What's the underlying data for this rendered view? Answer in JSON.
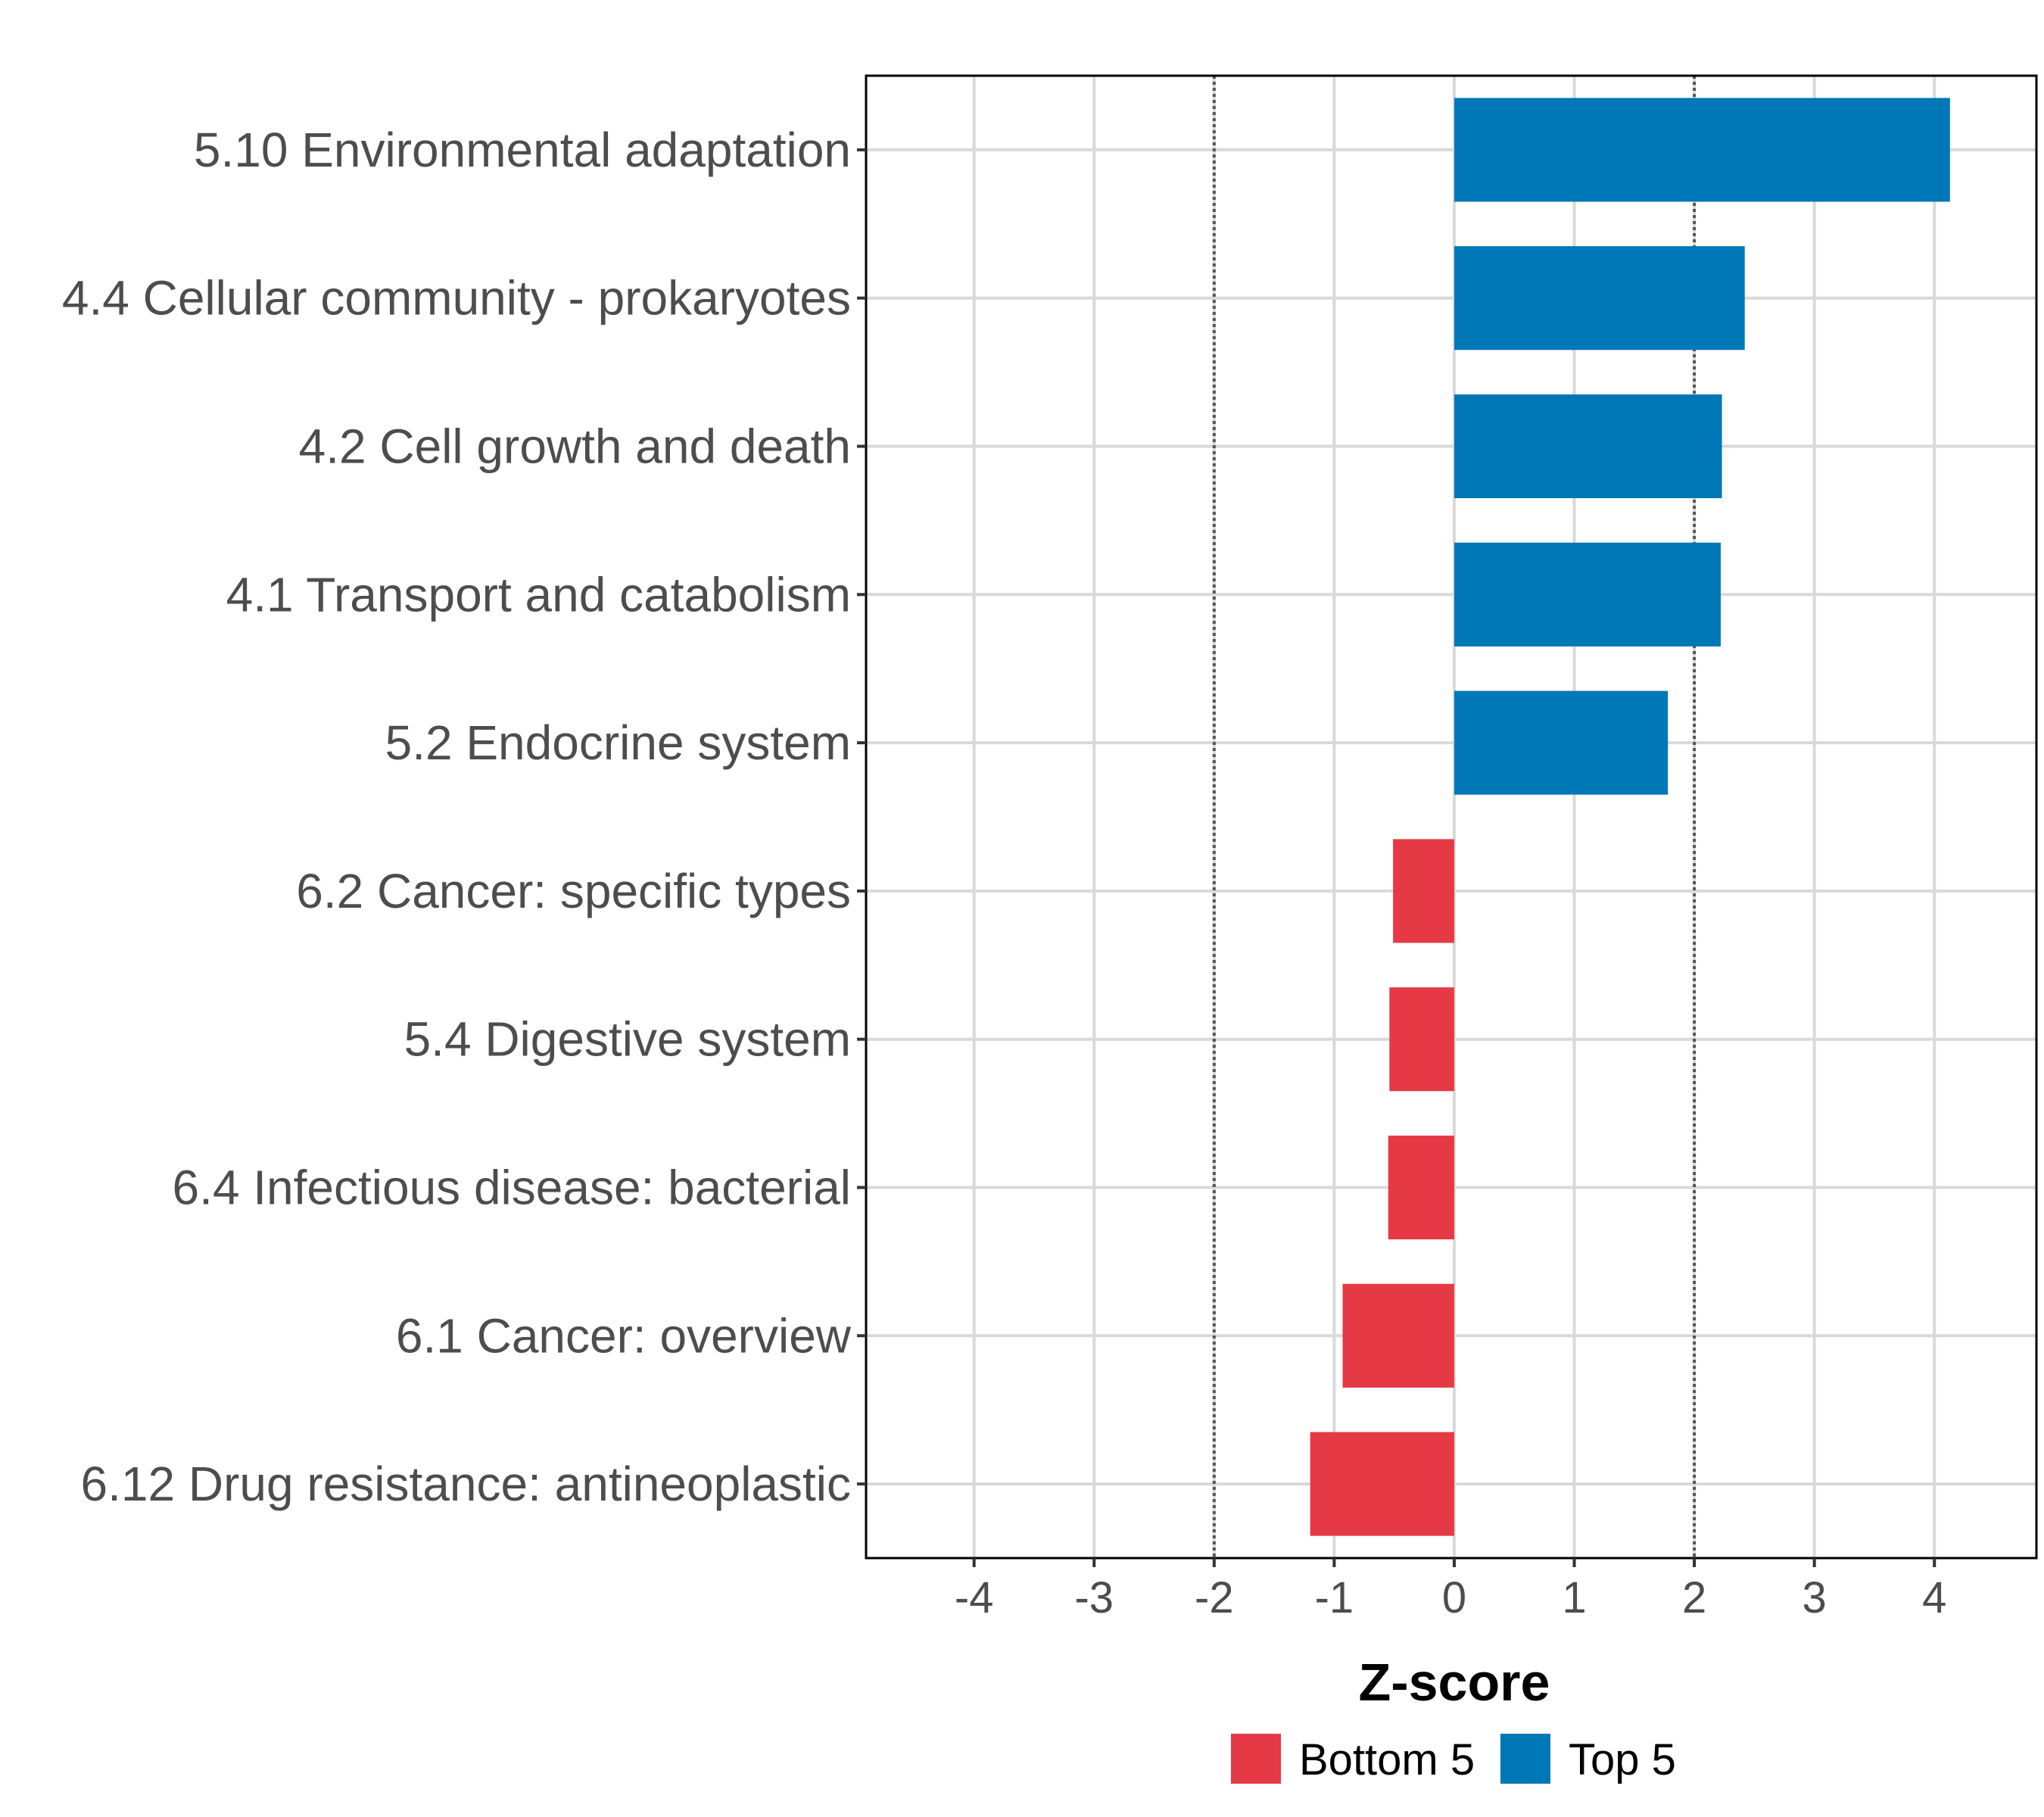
{
  "chart_data": {
    "type": "bar",
    "orientation": "horizontal",
    "title": "",
    "xlabel": "Z-score",
    "ylabel": "",
    "xlim": [
      -4.9,
      4.85
    ],
    "xticks": [
      -4,
      -3,
      -2,
      -1,
      0,
      1,
      2,
      3,
      4
    ],
    "xtick_labels": [
      "-4",
      "-3",
      "-2",
      "-1",
      "0",
      "1",
      "2",
      "3",
      "4"
    ],
    "reference_lines": [
      -2,
      2
    ],
    "grid": true,
    "legend_position": "bottom",
    "categories": [
      "5.10 Environmental adaptation",
      "4.4 Cellular community - prokaryotes",
      "4.2 Cell growth and death",
      "4.1 Transport and catabolism",
      "5.2 Endocrine system",
      "6.2 Cancer: specific types",
      "5.4 Digestive system",
      "6.4 Infectious disease: bacterial",
      "6.1 Cancer: overview",
      "6.12 Drug resistance: antineoplastic"
    ],
    "values": [
      4.13,
      2.42,
      2.23,
      2.22,
      1.78,
      -0.51,
      -0.54,
      -0.55,
      -0.93,
      -1.2
    ],
    "groups": [
      "Top 5",
      "Top 5",
      "Top 5",
      "Top 5",
      "Top 5",
      "Bottom 5",
      "Bottom 5",
      "Bottom 5",
      "Bottom 5",
      "Bottom 5"
    ],
    "legend": [
      {
        "name": "Bottom 5",
        "color": "#e63946"
      },
      {
        "name": "Top 5",
        "color": "#0077b6"
      }
    ]
  }
}
